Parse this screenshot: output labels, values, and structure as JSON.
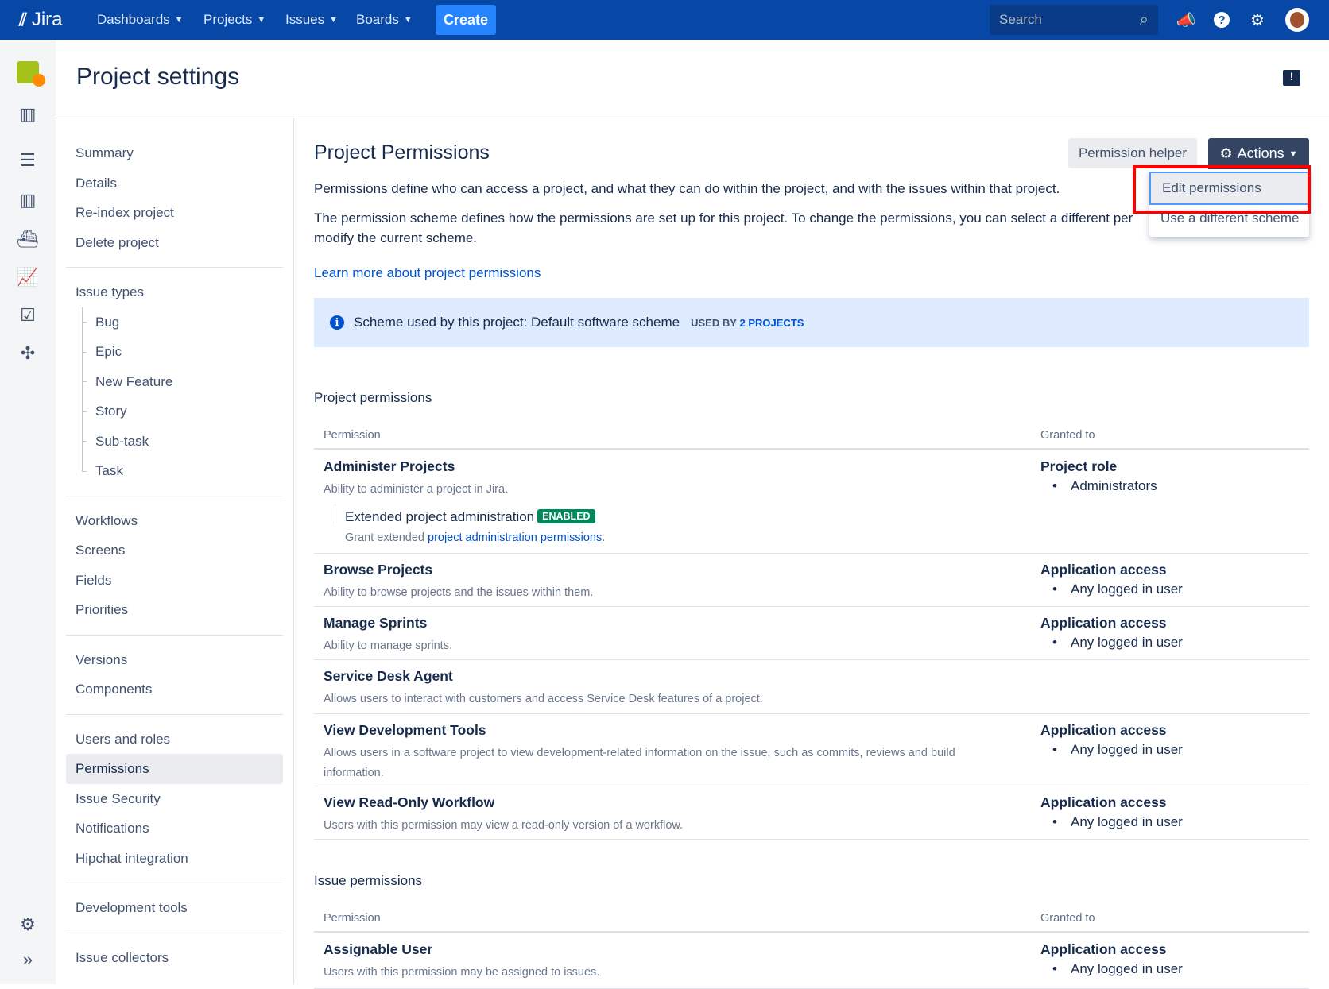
{
  "topbar": {
    "logo": "Jira",
    "nav": [
      {
        "label": "Dashboards"
      },
      {
        "label": "Projects"
      },
      {
        "label": "Issues"
      },
      {
        "label": "Boards"
      }
    ],
    "create": "Create",
    "search_placeholder": "Search",
    "icons": [
      "megaphone-icon",
      "help-icon",
      "gear-icon",
      "avatar"
    ]
  },
  "rail": {
    "icons": [
      "project-avatar",
      "backlog-icon",
      "board-icon",
      "sprints-icon",
      "releases-icon",
      "reports-icon",
      "issues-icon",
      "components-icon",
      "settings-icon",
      "expand-icon"
    ]
  },
  "page": {
    "title": "Project settings"
  },
  "sidebar": {
    "groups": [
      {
        "items": [
          {
            "label": "Summary"
          },
          {
            "label": "Details"
          },
          {
            "label": "Re-index project"
          },
          {
            "label": "Delete project"
          }
        ]
      },
      {
        "items": [
          {
            "label": "Issue types"
          },
          {
            "label": "Bug",
            "sub": true
          },
          {
            "label": "Epic",
            "sub": true
          },
          {
            "label": "New Feature",
            "sub": true
          },
          {
            "label": "Story",
            "sub": true
          },
          {
            "label": "Sub-task",
            "sub": true
          },
          {
            "label": "Task",
            "sub": true
          }
        ]
      },
      {
        "items": [
          {
            "label": "Workflows"
          },
          {
            "label": "Screens"
          },
          {
            "label": "Fields"
          },
          {
            "label": "Priorities"
          }
        ]
      },
      {
        "items": [
          {
            "label": "Versions"
          },
          {
            "label": "Components"
          }
        ]
      },
      {
        "items": [
          {
            "label": "Users and roles"
          },
          {
            "label": "Permissions",
            "active": true
          },
          {
            "label": "Issue Security"
          },
          {
            "label": "Notifications"
          },
          {
            "label": "Hipchat integration"
          }
        ]
      },
      {
        "items": [
          {
            "label": "Development tools"
          }
        ]
      },
      {
        "items": [
          {
            "label": "Issue collectors"
          }
        ]
      }
    ]
  },
  "main": {
    "title": "Project Permissions",
    "permission_helper": "Permission helper",
    "actions": "Actions",
    "actions_menu": {
      "items": [
        "Edit permissions",
        "Use a different scheme"
      ],
      "highlighted": "Edit permissions"
    },
    "intro1": "Permissions define who can access a project, and what they can do within the project, and with the issues within that project.",
    "intro2a": "The permission scheme defines how the permissions are set up for this project. To change the permissions, you can select a different per",
    "intro2b": "modify the current scheme.",
    "learn_more": "Learn more about project permissions",
    "scheme_text": "Scheme used by this project: Default software scheme",
    "used_by": "USED BY",
    "used_by_link": "2 PROJECTS",
    "project_section": "Project permissions",
    "issue_section": "Issue permissions",
    "col_permission": "Permission",
    "col_granted": "Granted to",
    "project_rows": [
      {
        "name": "Administer Projects",
        "desc": "Ability to administer a project in Jira.",
        "granted_type": "Project role",
        "granted": "Administrators",
        "ext_title": "Extended project administration",
        "ext_badge": "ENABLED",
        "ext_desc": "Grant extended ",
        "ext_link": "project administration permissions",
        "ext_end": "."
      },
      {
        "name": "Browse Projects",
        "desc": "Ability to browse projects and the issues within them.",
        "granted_type": "Application access",
        "granted": "Any logged in user"
      },
      {
        "name": "Manage Sprints",
        "desc": "Ability to manage sprints.",
        "granted_type": "Application access",
        "granted": "Any logged in user"
      },
      {
        "name": "Service Desk Agent",
        "desc": "Allows users to interact with customers and access Service Desk features of a project."
      },
      {
        "name": "View Development Tools",
        "desc": "Allows users in a software project to view development-related information on the issue, such as commits, reviews and build information.",
        "granted_type": "Application access",
        "granted": "Any logged in user"
      },
      {
        "name": "View Read-Only Workflow",
        "desc": "Users with this permission may view a read-only version of a workflow.",
        "granted_type": "Application access",
        "granted": "Any logged in user"
      }
    ],
    "issue_rows": [
      {
        "name": "Assignable User",
        "desc": "Users with this permission may be assigned to issues.",
        "granted_type": "Application access",
        "granted": "Any logged in user"
      }
    ]
  },
  "colors": {
    "topbar": "#0747a6",
    "create": "#2684ff",
    "actions": "#344563",
    "highlight": "#ff0000",
    "info": "#deebff",
    "link": "#0052cc",
    "badge": "#00875a"
  }
}
